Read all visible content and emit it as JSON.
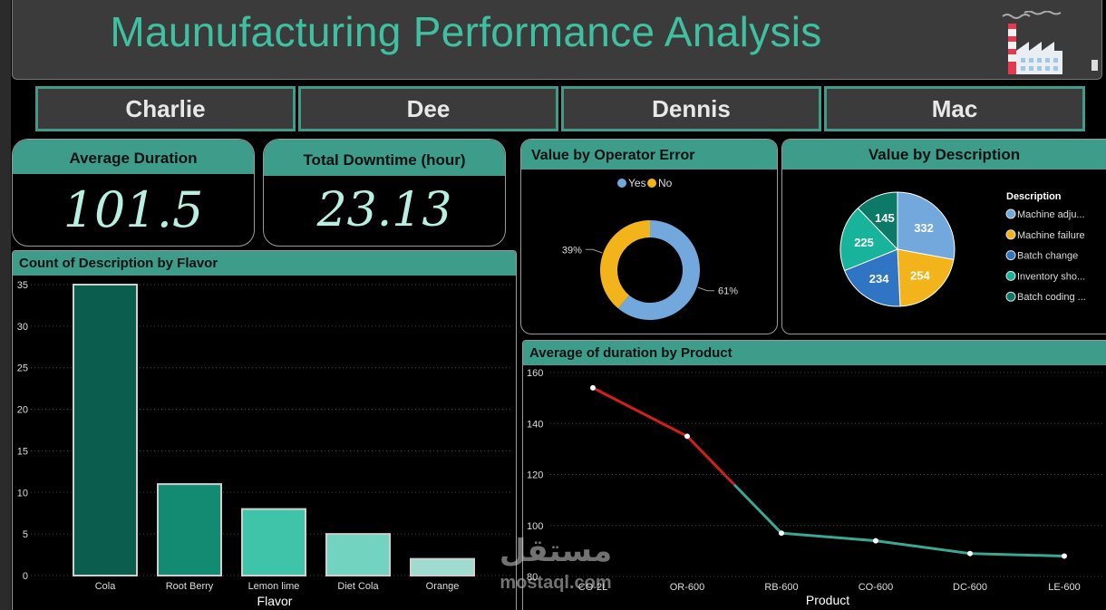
{
  "header": {
    "title": "Maunufacturing Performance Analysis",
    "logo_icon": "factory-icon"
  },
  "operators": [
    {
      "label": "Charlie"
    },
    {
      "label": "Dee"
    },
    {
      "label": "Dennis"
    },
    {
      "label": "Mac"
    }
  ],
  "kpis": {
    "avg_duration": {
      "label": "Average Duration",
      "value": "101.5"
    },
    "total_downtime": {
      "label": "Total Downtime (hour)",
      "value": "23.13"
    }
  },
  "watermark": {
    "arabic": "مستقل",
    "latin": "mostaql.com"
  },
  "colors": {
    "accent": "#3d9c8a",
    "title": "#3fc0a0",
    "donut_yes": "#73a8dc",
    "donut_no": "#f2b31b",
    "line_high": "#d11f1f",
    "line_low": "#3aa994"
  },
  "chart_data": [
    {
      "id": "flavor",
      "type": "bar",
      "title": "Count of Description by Flavor",
      "xlabel": "Flavor",
      "ylabel": "",
      "categories": [
        "Cola",
        "Root Berry",
        "Lemon lime",
        "Diet Cola",
        "Orange"
      ],
      "values": [
        35,
        11,
        8,
        5,
        2
      ],
      "bar_colors": [
        "#0b5e4e",
        "#138a72",
        "#3fc4aa",
        "#72d3c0",
        "#9fdccf"
      ],
      "ylim": [
        0,
        35
      ],
      "yticks": [
        0,
        5,
        10,
        15,
        20,
        25,
        30,
        35
      ],
      "grid": true
    },
    {
      "id": "operator_error",
      "type": "pie",
      "donut": true,
      "title": "Value by Operator Error",
      "legend": [
        "Yes",
        "No"
      ],
      "labels": [
        "Yes",
        "No"
      ],
      "values": [
        61,
        39
      ],
      "value_labels": [
        "61%",
        "39%"
      ],
      "colors": [
        "#73a8dc",
        "#f2b31b"
      ],
      "legend_position": "top"
    },
    {
      "id": "description",
      "type": "pie",
      "title": "Value by Description",
      "legend_title": "Description",
      "labels": [
        "Machine adju...",
        "Machine failure",
        "Batch change",
        "Inventory sho...",
        "Batch coding ..."
      ],
      "values": [
        332,
        254,
        234,
        225,
        145
      ],
      "value_labels": [
        "332",
        "254",
        "234",
        "225",
        "145"
      ],
      "colors": [
        "#73a8dc",
        "#f2b31b",
        "#2f75c4",
        "#17b39a",
        "#0c7a66"
      ],
      "legend_position": "right"
    },
    {
      "id": "duration_product",
      "type": "line",
      "title": "Average of duration by Product",
      "xlabel": "Product",
      "ylabel": "",
      "x": [
        "CO-2L",
        "OR-600",
        "RB-600",
        "CO-600",
        "DC-600",
        "LE-600"
      ],
      "values": [
        154,
        135,
        97,
        94,
        89,
        88
      ],
      "ylim": [
        80,
        160
      ],
      "yticks": [
        80,
        100,
        120,
        140,
        160
      ],
      "threshold": 116,
      "grid": true
    }
  ]
}
